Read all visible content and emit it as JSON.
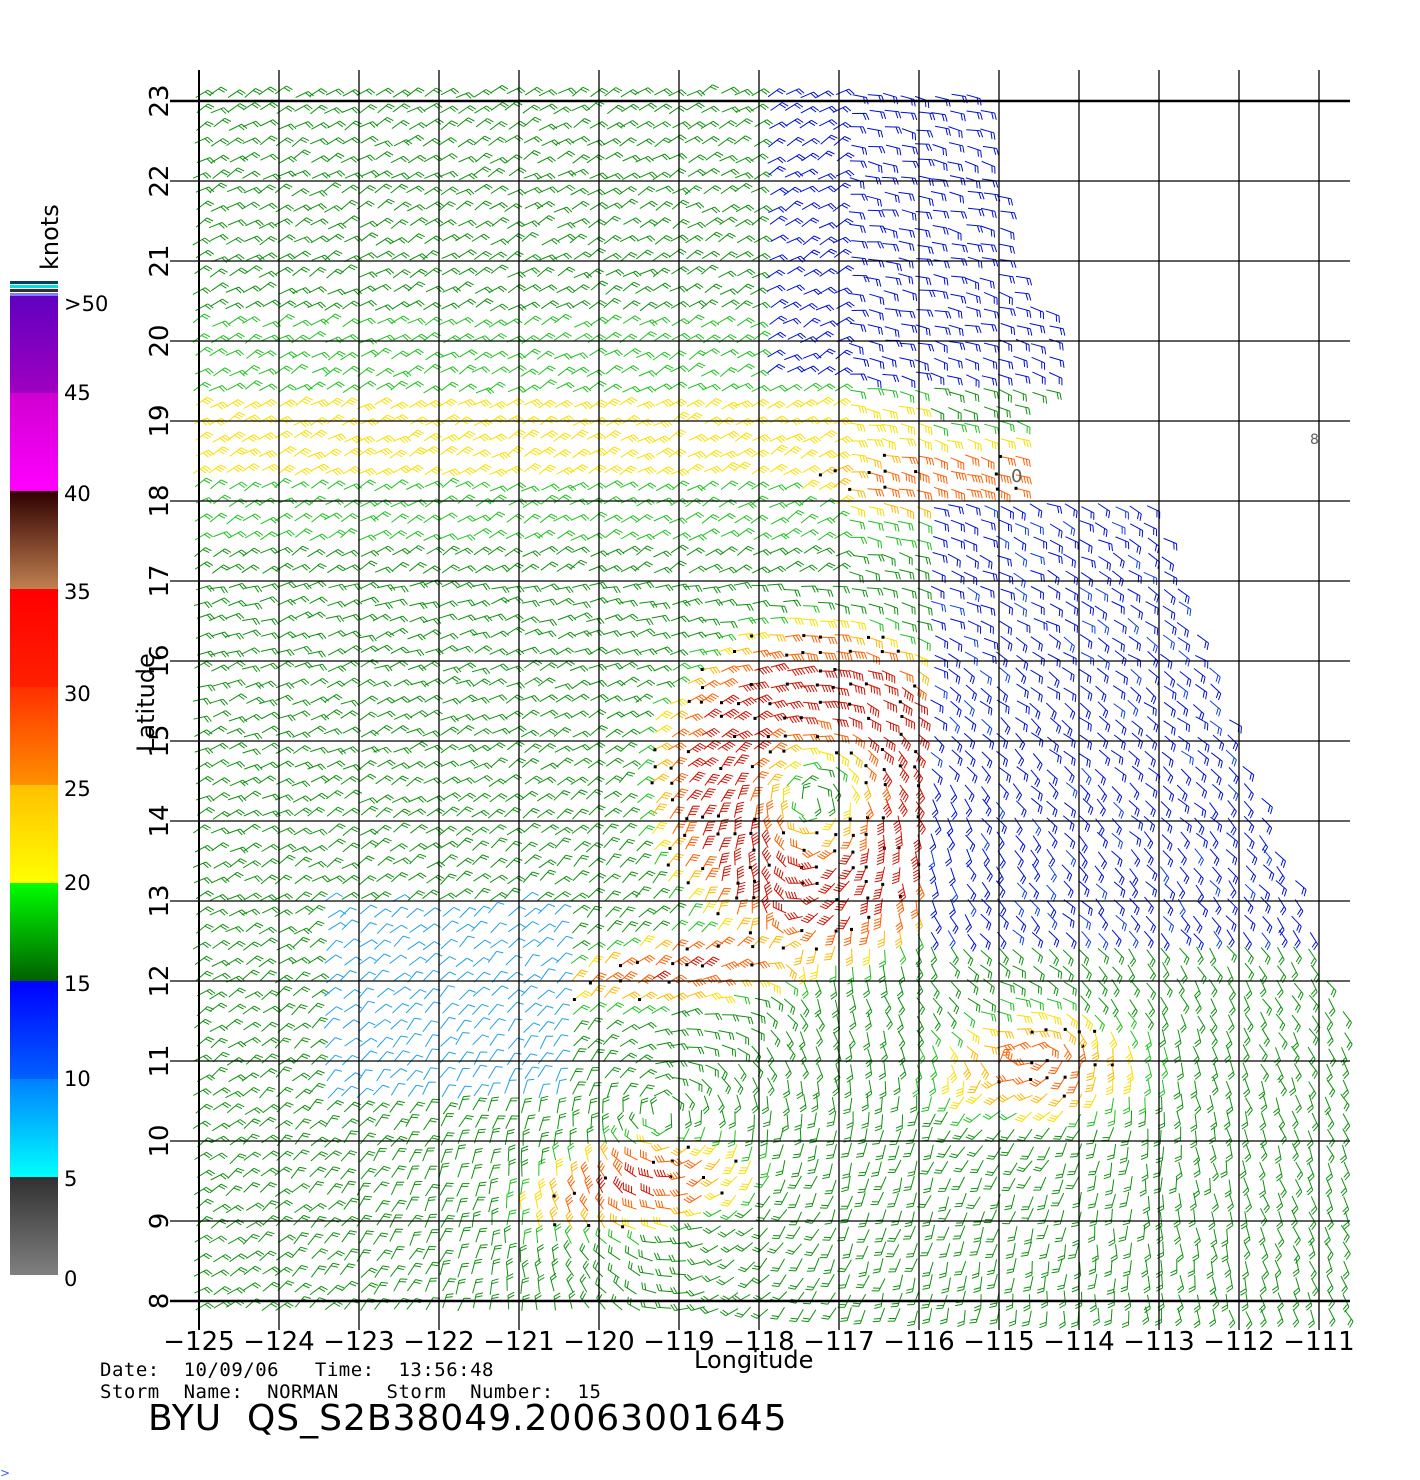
{
  "map": {
    "units_label": "knots",
    "x_axis_label": "Longitude",
    "y_axis_label": "Latitude",
    "longitude_ticks": [
      "−125",
      "−124",
      "−123",
      "−122",
      "−121",
      "−120",
      "−119",
      "−118",
      "−117",
      "−116",
      "−115",
      "−114",
      "−113",
      "−112",
      "−111"
    ],
    "latitude_ticks": [
      "8",
      "9",
      "10",
      "11",
      "12",
      "13",
      "14",
      "15",
      "16",
      "17",
      "18",
      "19",
      "20",
      "21",
      "22",
      "23"
    ],
    "lon_range": [
      -125,
      -111
    ],
    "lat_range": [
      8,
      23
    ],
    "colorbar_labels": [
      ">50",
      "45",
      "40",
      "35",
      "30",
      "25",
      "20",
      "15",
      "10",
      "5",
      "0"
    ],
    "colorbar_colors": {
      "0-5": [
        "#808080",
        "#303030"
      ],
      "5-10": [
        "#00ffff",
        "#0080ff"
      ],
      "10-15": [
        "#0060ff",
        "#0000ff"
      ],
      "15-20": [
        "#006000",
        "#00ff00"
      ],
      "20-25": [
        "#ffff00",
        "#ffc000"
      ],
      "25-30": [
        "#ff9000",
        "#ff3000"
      ],
      "30-35": [
        "#ff2000",
        "#ff0000"
      ],
      "35-40": [
        "#c08050",
        "#300000"
      ],
      "40-45": [
        "#ff00ff",
        "#d000d0"
      ],
      "45-50": [
        "#a000c0",
        "#6000c0"
      ]
    },
    "storm_center_marker": "0",
    "edge_marker": "8"
  },
  "info": {
    "date_line": "Date:  10/09/06   Time:  13:56:48",
    "storm_line": "Storm  Name:  NORMAN    Storm  Number:  15",
    "file_id": "BYU  QS_S2B38049.20063001645"
  },
  "corner_mark": ">"
}
